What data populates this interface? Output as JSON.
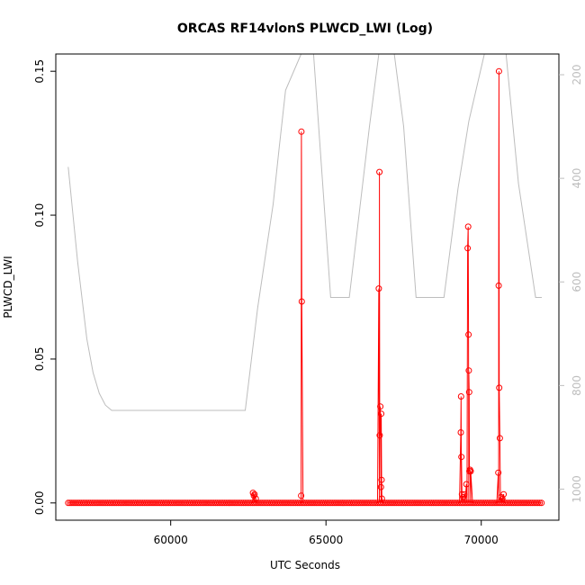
{
  "chart_data": {
    "type": "line",
    "title": "ORCAS RF14vlonS PLWCD_LWI (Log)",
    "xlabel": "UTC Seconds",
    "ylabel": "PLWCD_LWI",
    "xlim": [
      56300,
      72500
    ],
    "ylim": [
      -0.006,
      0.156
    ],
    "y2lim": [
      1060,
      160
    ],
    "y2_reversed": true,
    "x_ticks": [
      60000,
      65000,
      70000
    ],
    "x_tick_labels": [
      "60000",
      "65000",
      "70000"
    ],
    "y_ticks": [
      0.0,
      0.05,
      0.1,
      0.15
    ],
    "y_tick_labels": [
      "0.00",
      "0.05",
      "0.10",
      "0.15"
    ],
    "y2_ticks": [
      200,
      400,
      600,
      800,
      1000
    ],
    "y2_tick_labels": [
      "200",
      "400",
      "600",
      "800",
      "1000"
    ],
    "grid": false,
    "colors": {
      "primary_series": "#ff0000",
      "secondary_series": "#bdbdbd",
      "axes": "#000000",
      "right_axis": "#bdbdbd"
    },
    "series": [
      {
        "axis": "left",
        "style": "line+circle",
        "baseline": {
          "x_start": 56700,
          "x_end": 71950,
          "step": 60,
          "y": 0.0
        },
        "points": [
          {
            "x": 62650,
            "y": 0.0035
          },
          {
            "x": 62680,
            "y": 0.0025
          },
          {
            "x": 62700,
            "y": 0.003
          },
          {
            "x": 62740,
            "y": 0.0015
          },
          {
            "x": 64200,
            "y": 0.0025
          },
          {
            "x": 64210,
            "y": 0.129
          },
          {
            "x": 64220,
            "y": 0.07
          },
          {
            "x": 66700,
            "y": 0.0745
          },
          {
            "x": 66720,
            "y": 0.115
          },
          {
            "x": 66730,
            "y": 0.0235
          },
          {
            "x": 66750,
            "y": 0.0335
          },
          {
            "x": 66780,
            "y": 0.031
          },
          {
            "x": 66790,
            "y": 0.008
          },
          {
            "x": 66770,
            "y": 0.0055
          },
          {
            "x": 66800,
            "y": 0.0015
          },
          {
            "x": 69350,
            "y": 0.037
          },
          {
            "x": 69340,
            "y": 0.0245
          },
          {
            "x": 69360,
            "y": 0.016
          },
          {
            "x": 69380,
            "y": 0.003
          },
          {
            "x": 69420,
            "y": 0.002
          },
          {
            "x": 69460,
            "y": 0.003
          },
          {
            "x": 69520,
            "y": 0.0065
          },
          {
            "x": 69560,
            "y": 0.0885
          },
          {
            "x": 69580,
            "y": 0.096
          },
          {
            "x": 69590,
            "y": 0.0585
          },
          {
            "x": 69600,
            "y": 0.046
          },
          {
            "x": 69610,
            "y": 0.0385
          },
          {
            "x": 69620,
            "y": 0.011
          },
          {
            "x": 69640,
            "y": 0.0115
          },
          {
            "x": 69660,
            "y": 0.011
          },
          {
            "x": 70550,
            "y": 0.0105
          },
          {
            "x": 70560,
            "y": 0.0755
          },
          {
            "x": 70570,
            "y": 0.15
          },
          {
            "x": 70580,
            "y": 0.04
          },
          {
            "x": 70600,
            "y": 0.0225
          },
          {
            "x": 70640,
            "y": 0.002
          },
          {
            "x": 70680,
            "y": 0.0015
          },
          {
            "x": 70720,
            "y": 0.003
          }
        ]
      },
      {
        "axis": "right",
        "style": "line",
        "points": [
          [
            56700,
            378
          ],
          [
            57000,
            560
          ],
          [
            57300,
            710
          ],
          [
            57500,
            775
          ],
          [
            57700,
            815
          ],
          [
            57900,
            838
          ],
          [
            58100,
            848
          ],
          [
            58500,
            848
          ],
          [
            59500,
            848
          ],
          [
            61000,
            848
          ],
          [
            62400,
            848
          ],
          [
            62800,
            650
          ],
          [
            63300,
            450
          ],
          [
            63500,
            338
          ],
          [
            63700,
            230
          ],
          [
            64200,
            140
          ],
          [
            64600,
            140
          ],
          [
            65150,
            630
          ],
          [
            65750,
            630
          ],
          [
            66400,
            300
          ],
          [
            66700,
            140
          ],
          [
            67200,
            140
          ],
          [
            67500,
            300
          ],
          [
            67900,
            630
          ],
          [
            68800,
            630
          ],
          [
            69250,
            420
          ],
          [
            69600,
            290
          ],
          [
            70100,
            140
          ],
          [
            70800,
            140
          ],
          [
            71200,
            410
          ],
          [
            71750,
            630
          ],
          [
            71950,
            630
          ]
        ]
      }
    ]
  }
}
